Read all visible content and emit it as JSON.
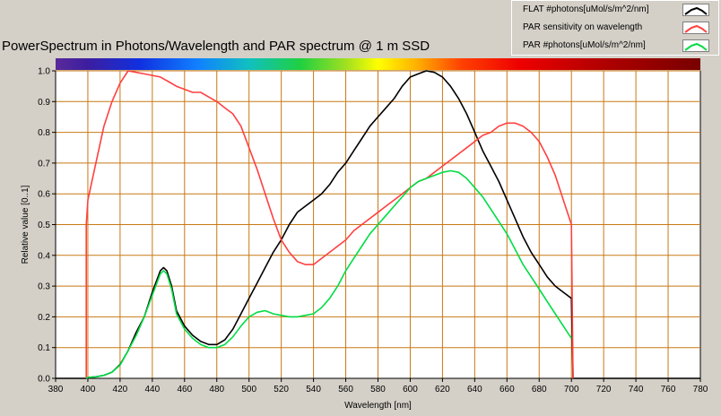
{
  "title": "PowerSpectrum in Photons/Wavelength and PAR spectrum @ 1 m SSD",
  "legend": [
    {
      "label": "FLAT #photons[uMol/s/m^2/nm]",
      "color": "#000000"
    },
    {
      "label": "PAR sensitivity on wavelength",
      "color": "#ff4040"
    },
    {
      "label": "PAR #photons[uMol/s/m^2/nm]",
      "color": "#00dd44"
    }
  ],
  "chart_data": {
    "type": "line",
    "xlabel": "Wavelength [nm]",
    "ylabel": "Relative value [0..1]",
    "xlim": [
      380,
      780
    ],
    "ylim": [
      0,
      1
    ],
    "xticks": [
      380,
      400,
      420,
      440,
      460,
      480,
      500,
      520,
      540,
      560,
      580,
      600,
      620,
      640,
      660,
      680,
      700,
      720,
      740,
      760,
      780
    ],
    "yticks": [
      0.0,
      0.1,
      0.2,
      0.3,
      0.4,
      0.5,
      0.6,
      0.7,
      0.8,
      0.9,
      1.0
    ],
    "grid": true,
    "grid_color": "#c87814",
    "plot_bg": "#ffffff",
    "spectrum_bar": true,
    "series": [
      {
        "name": "FLAT #photons[uMol/s/m^2/nm]",
        "color": "#000000",
        "points": [
          [
            380,
            0
          ],
          [
            399,
            0
          ],
          [
            400,
            0.003
          ],
          [
            405,
            0.005
          ],
          [
            410,
            0.01
          ],
          [
            415,
            0.02
          ],
          [
            420,
            0.045
          ],
          [
            425,
            0.09
          ],
          [
            430,
            0.15
          ],
          [
            435,
            0.2
          ],
          [
            440,
            0.28
          ],
          [
            445,
            0.35
          ],
          [
            447,
            0.36
          ],
          [
            449,
            0.35
          ],
          [
            452,
            0.3
          ],
          [
            455,
            0.22
          ],
          [
            460,
            0.17
          ],
          [
            465,
            0.14
          ],
          [
            470,
            0.12
          ],
          [
            475,
            0.11
          ],
          [
            480,
            0.11
          ],
          [
            485,
            0.125
          ],
          [
            490,
            0.16
          ],
          [
            495,
            0.21
          ],
          [
            500,
            0.26
          ],
          [
            505,
            0.31
          ],
          [
            510,
            0.36
          ],
          [
            515,
            0.41
          ],
          [
            520,
            0.45
          ],
          [
            525,
            0.5
          ],
          [
            530,
            0.54
          ],
          [
            535,
            0.56
          ],
          [
            540,
            0.58
          ],
          [
            545,
            0.6
          ],
          [
            550,
            0.63
          ],
          [
            555,
            0.67
          ],
          [
            560,
            0.7
          ],
          [
            565,
            0.74
          ],
          [
            570,
            0.78
          ],
          [
            575,
            0.82
          ],
          [
            580,
            0.85
          ],
          [
            585,
            0.88
          ],
          [
            590,
            0.91
          ],
          [
            595,
            0.95
          ],
          [
            600,
            0.98
          ],
          [
            605,
            0.99
          ],
          [
            610,
            1.0
          ],
          [
            615,
            0.995
          ],
          [
            620,
            0.98
          ],
          [
            625,
            0.95
          ],
          [
            630,
            0.91
          ],
          [
            635,
            0.86
          ],
          [
            640,
            0.8
          ],
          [
            645,
            0.74
          ],
          [
            650,
            0.69
          ],
          [
            655,
            0.64
          ],
          [
            660,
            0.58
          ],
          [
            665,
            0.52
          ],
          [
            670,
            0.46
          ],
          [
            675,
            0.41
          ],
          [
            680,
            0.37
          ],
          [
            685,
            0.33
          ],
          [
            690,
            0.3
          ],
          [
            695,
            0.28
          ],
          [
            700,
            0.26
          ],
          [
            701,
            0
          ],
          [
            780,
            0
          ]
        ]
      },
      {
        "name": "PAR sensitivity on wavelength",
        "color": "#ff4040",
        "points": [
          [
            399,
            0
          ],
          [
            399,
            0.5
          ],
          [
            400,
            0.58
          ],
          [
            405,
            0.7
          ],
          [
            410,
            0.82
          ],
          [
            415,
            0.9
          ],
          [
            420,
            0.96
          ],
          [
            425,
            1.0
          ],
          [
            430,
            0.995
          ],
          [
            435,
            0.99
          ],
          [
            440,
            0.985
          ],
          [
            445,
            0.98
          ],
          [
            450,
            0.965
          ],
          [
            455,
            0.95
          ],
          [
            460,
            0.94
          ],
          [
            465,
            0.93
          ],
          [
            470,
            0.93
          ],
          [
            475,
            0.915
          ],
          [
            480,
            0.9
          ],
          [
            485,
            0.88
          ],
          [
            490,
            0.86
          ],
          [
            495,
            0.82
          ],
          [
            500,
            0.75
          ],
          [
            505,
            0.68
          ],
          [
            510,
            0.6
          ],
          [
            515,
            0.52
          ],
          [
            520,
            0.45
          ],
          [
            525,
            0.41
          ],
          [
            530,
            0.38
          ],
          [
            535,
            0.37
          ],
          [
            540,
            0.37
          ],
          [
            545,
            0.39
          ],
          [
            550,
            0.41
          ],
          [
            555,
            0.43
          ],
          [
            560,
            0.45
          ],
          [
            565,
            0.48
          ],
          [
            570,
            0.5
          ],
          [
            575,
            0.52
          ],
          [
            580,
            0.54
          ],
          [
            585,
            0.56
          ],
          [
            590,
            0.58
          ],
          [
            595,
            0.6
          ],
          [
            600,
            0.62
          ],
          [
            605,
            0.64
          ],
          [
            610,
            0.65
          ],
          [
            615,
            0.67
          ],
          [
            620,
            0.69
          ],
          [
            625,
            0.71
          ],
          [
            630,
            0.73
          ],
          [
            635,
            0.75
          ],
          [
            640,
            0.77
          ],
          [
            645,
            0.79
          ],
          [
            650,
            0.8
          ],
          [
            655,
            0.82
          ],
          [
            660,
            0.83
          ],
          [
            665,
            0.83
          ],
          [
            670,
            0.82
          ],
          [
            675,
            0.8
          ],
          [
            680,
            0.77
          ],
          [
            685,
            0.72
          ],
          [
            690,
            0.66
          ],
          [
            695,
            0.58
          ],
          [
            700,
            0.5
          ],
          [
            701,
            0
          ]
        ]
      },
      {
        "name": "PAR #photons[uMol/s/m^2/nm]",
        "color": "#00dd44",
        "points": [
          [
            399,
            0
          ],
          [
            400,
            0.003
          ],
          [
            405,
            0.005
          ],
          [
            410,
            0.01
          ],
          [
            415,
            0.02
          ],
          [
            420,
            0.043
          ],
          [
            425,
            0.09
          ],
          [
            430,
            0.14
          ],
          [
            435,
            0.2
          ],
          [
            440,
            0.27
          ],
          [
            445,
            0.34
          ],
          [
            447,
            0.35
          ],
          [
            449,
            0.34
          ],
          [
            452,
            0.29
          ],
          [
            455,
            0.21
          ],
          [
            460,
            0.16
          ],
          [
            465,
            0.13
          ],
          [
            470,
            0.11
          ],
          [
            475,
            0.1
          ],
          [
            480,
            0.1
          ],
          [
            485,
            0.11
          ],
          [
            490,
            0.135
          ],
          [
            495,
            0.17
          ],
          [
            500,
            0.2
          ],
          [
            505,
            0.215
          ],
          [
            510,
            0.22
          ],
          [
            515,
            0.21
          ],
          [
            520,
            0.205
          ],
          [
            525,
            0.2
          ],
          [
            530,
            0.2
          ],
          [
            535,
            0.205
          ],
          [
            540,
            0.21
          ],
          [
            545,
            0.23
          ],
          [
            550,
            0.26
          ],
          [
            555,
            0.3
          ],
          [
            560,
            0.35
          ],
          [
            565,
            0.39
          ],
          [
            570,
            0.43
          ],
          [
            575,
            0.47
          ],
          [
            580,
            0.5
          ],
          [
            585,
            0.53
          ],
          [
            590,
            0.56
          ],
          [
            595,
            0.59
          ],
          [
            600,
            0.62
          ],
          [
            605,
            0.64
          ],
          [
            610,
            0.65
          ],
          [
            615,
            0.66
          ],
          [
            620,
            0.67
          ],
          [
            625,
            0.675
          ],
          [
            630,
            0.67
          ],
          [
            635,
            0.65
          ],
          [
            640,
            0.62
          ],
          [
            645,
            0.59
          ],
          [
            650,
            0.55
          ],
          [
            655,
            0.51
          ],
          [
            660,
            0.47
          ],
          [
            665,
            0.42
          ],
          [
            670,
            0.37
          ],
          [
            675,
            0.33
          ],
          [
            680,
            0.29
          ],
          [
            685,
            0.25
          ],
          [
            690,
            0.21
          ],
          [
            695,
            0.17
          ],
          [
            700,
            0.13
          ]
        ]
      }
    ]
  }
}
